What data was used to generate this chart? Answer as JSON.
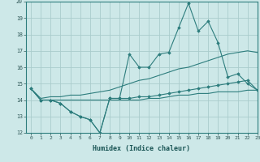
{
  "xlabel": "Humidex (Indice chaleur)",
  "background_color": "#cde8e8",
  "grid_color": "#aacccc",
  "line_color": "#2d7d7d",
  "x": [
    0,
    1,
    2,
    3,
    4,
    5,
    6,
    7,
    8,
    9,
    10,
    11,
    12,
    13,
    14,
    15,
    16,
    17,
    18,
    19,
    20,
    21,
    22,
    23
  ],
  "y_max": [
    14.7,
    14.0,
    14.0,
    13.8,
    13.3,
    13.0,
    12.8,
    12.0,
    14.1,
    14.1,
    16.8,
    16.0,
    16.0,
    16.8,
    16.9,
    18.4,
    19.9,
    18.2,
    18.8,
    17.5,
    15.4,
    15.6,
    15.0,
    14.6
  ],
  "y_min": [
    14.7,
    14.0,
    14.0,
    13.8,
    13.3,
    13.0,
    12.8,
    12.0,
    14.1,
    14.1,
    14.1,
    14.2,
    14.2,
    14.3,
    14.4,
    14.5,
    14.6,
    14.7,
    14.8,
    14.9,
    15.0,
    15.1,
    15.2,
    14.6
  ],
  "y_trend1": [
    14.7,
    14.1,
    14.2,
    14.2,
    14.3,
    14.3,
    14.4,
    14.5,
    14.6,
    14.8,
    15.0,
    15.2,
    15.3,
    15.5,
    15.7,
    15.9,
    16.0,
    16.2,
    16.4,
    16.6,
    16.8,
    16.9,
    17.0,
    16.9
  ],
  "y_trend2": [
    14.7,
    14.0,
    14.0,
    14.0,
    14.0,
    14.0,
    14.0,
    14.0,
    14.0,
    14.0,
    14.0,
    14.0,
    14.1,
    14.1,
    14.2,
    14.3,
    14.3,
    14.4,
    14.4,
    14.5,
    14.5,
    14.5,
    14.6,
    14.6
  ],
  "ylim": [
    12,
    20
  ],
  "xlim": [
    -0.5,
    23
  ],
  "yticks": [
    12,
    13,
    14,
    15,
    16,
    17,
    18,
    19,
    20
  ],
  "xticks": [
    0,
    1,
    2,
    3,
    4,
    5,
    6,
    7,
    8,
    9,
    10,
    11,
    12,
    13,
    14,
    15,
    16,
    17,
    18,
    19,
    20,
    21,
    22,
    23
  ]
}
